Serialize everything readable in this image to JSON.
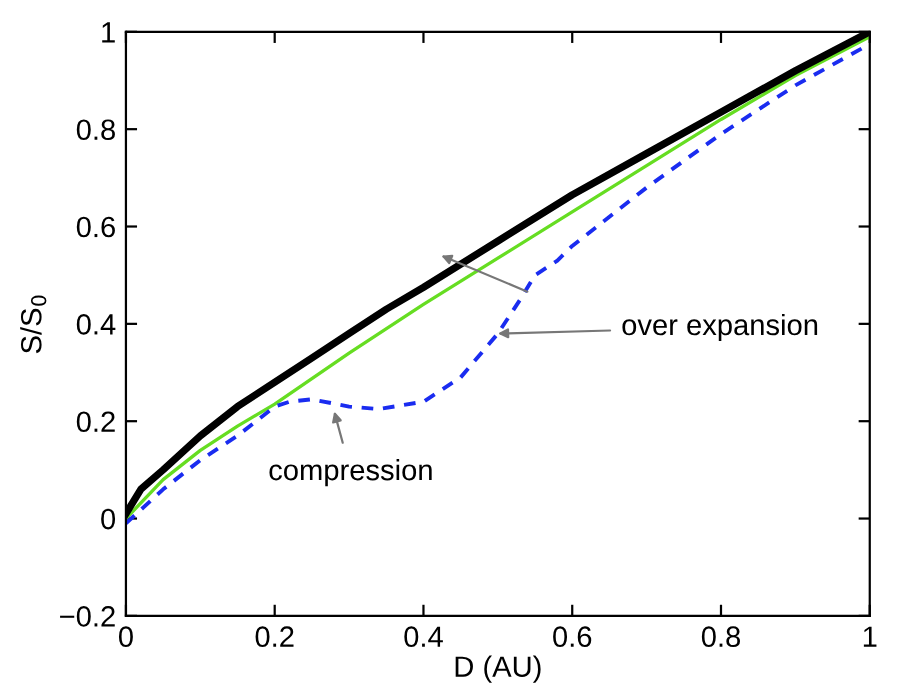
{
  "chart_data": {
    "type": "line",
    "xlabel": "D (AU)",
    "ylabel": "S/S$_{0}$",
    "xlim": [
      0,
      1
    ],
    "ylim": [
      -0.2,
      1
    ],
    "xticks": [
      0,
      0.2,
      0.4,
      0.6,
      0.8,
      1
    ],
    "yticks": [
      {
        "value": -0.2,
        "label": "−0.2"
      },
      0,
      0.2,
      0.4,
      0.6,
      0.8,
      1
    ],
    "grid": false,
    "legend": false,
    "series": [
      {
        "color": "#66dd22",
        "line_style": "solid",
        "x": [
          0,
          0.05,
          0.1,
          0.15,
          0.2,
          0.3,
          0.4,
          0.5,
          0.6,
          0.7,
          0.8,
          0.9,
          1
        ],
        "values": [
          0,
          0.08,
          0.14,
          0.19,
          0.235,
          0.34,
          0.44,
          0.535,
          0.63,
          0.725,
          0.82,
          0.91,
          0.99
        ]
      },
      {
        "color": "#1a2cf0",
        "line_style": "dashed",
        "x": [
          0,
          0.05,
          0.1,
          0.15,
          0.2,
          0.22,
          0.25,
          0.3,
          0.34,
          0.4,
          0.45,
          0.5,
          0.53,
          0.55,
          0.58,
          0.6,
          0.7,
          0.8,
          0.9,
          1
        ],
        "values": [
          -0.01,
          0.06,
          0.12,
          0.17,
          0.23,
          0.24,
          0.245,
          0.23,
          0.225,
          0.24,
          0.29,
          0.38,
          0.45,
          0.5,
          0.53,
          0.56,
          0.68,
          0.79,
          0.89,
          0.975
        ]
      },
      {
        "color": "#000000",
        "line_style": "solid",
        "x": [
          0,
          0.02,
          0.05,
          0.1,
          0.15,
          0.2,
          0.25,
          0.3,
          0.35,
          0.4,
          0.5,
          0.6,
          0.7,
          0.8,
          0.9,
          1
        ],
        "values": [
          0.01,
          0.06,
          0.1,
          0.17,
          0.23,
          0.28,
          0.33,
          0.38,
          0.43,
          0.475,
          0.57,
          0.665,
          0.75,
          0.835,
          0.92,
          1.0
        ]
      }
    ],
    "annotations": [
      {
        "text": "compression",
        "x": 0.28,
        "y": 0.22
      },
      {
        "text": "over expansion",
        "x": 0.5,
        "y": 0.38
      }
    ]
  }
}
